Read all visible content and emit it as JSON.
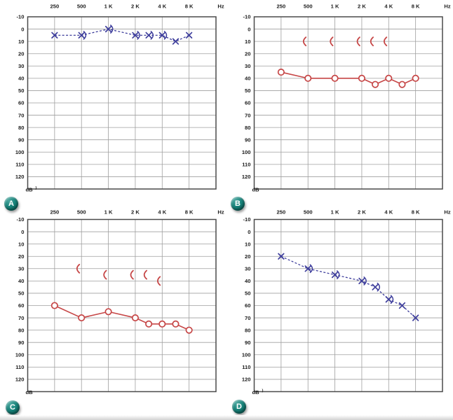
{
  "figure": {
    "description": "Four audiograms arranged in a 2x2 grid, labeled A, B, C, D",
    "background_color": "#ffffff"
  },
  "axis": {
    "x_tick_labels": [
      "250",
      "500",
      "1 K",
      "2 K",
      "4 K",
      "8 K"
    ],
    "x_unit_label": "Hz",
    "y_tick_labels": [
      "-10",
      "0",
      "10",
      "20",
      "30",
      "40",
      "50",
      "60",
      "70",
      "80",
      "90",
      "100",
      "110",
      "120"
    ],
    "y_axis": {
      "min": -10,
      "max": 120,
      "step": 10,
      "inverted": true
    },
    "grid": "on"
  },
  "colors": {
    "air_left_blue": "#3e3e9c",
    "air_right_red": "#c64646",
    "grid_line": "#9f9f9f",
    "grid_border": "#4a4a4a",
    "badge_teal": "#17837a"
  },
  "chart_data": [
    {
      "panel_label": "A",
      "type": "line",
      "series_name": "air conduction, X markers",
      "marker": "x",
      "line_style": "dashed",
      "color": "#3e3e9c",
      "x_hz": [
        250,
        500,
        1000,
        2000,
        3000,
        4000,
        6000,
        8000
      ],
      "values_db": [
        5,
        5,
        0,
        5,
        5,
        5,
        10,
        5
      ],
      "arrow_marks": {
        "symbol": ")",
        "at_hz": [
          500,
          1000,
          2000,
          3000,
          4000
        ]
      },
      "bone_marks": null,
      "y_unit_label": "dB",
      "y_unit_mark": ")"
    },
    {
      "panel_label": "B",
      "type": "line",
      "series_name": "air conduction, O markers",
      "marker": "o",
      "line_style": "solid",
      "color": "#c64646",
      "x_hz": [
        250,
        500,
        1000,
        2000,
        3000,
        4000,
        6000,
        8000
      ],
      "values_db": [
        35,
        40,
        40,
        40,
        45,
        40,
        45,
        40
      ],
      "arrow_marks": null,
      "bone_marks": {
        "symbol": "(",
        "at_hz": [
          500,
          1000,
          2000,
          3000,
          4000
        ],
        "values_db": [
          10,
          10,
          10,
          10,
          10
        ]
      },
      "y_unit_label": "dB",
      "y_unit_mark": null
    },
    {
      "panel_label": "C",
      "type": "line",
      "series_name": "air conduction, O markers",
      "marker": "o",
      "line_style": "solid",
      "color": "#c64646",
      "x_hz": [
        250,
        500,
        1000,
        2000,
        3000,
        4000,
        6000,
        8000
      ],
      "values_db": [
        60,
        70,
        65,
        70,
        75,
        75,
        75,
        80
      ],
      "arrow_marks": null,
      "bone_marks": {
        "symbol": "(",
        "at_hz": [
          500,
          1000,
          2000,
          3000,
          4000
        ],
        "values_db": [
          30,
          35,
          35,
          35,
          40
        ]
      },
      "y_unit_label": "dB",
      "y_unit_mark": null
    },
    {
      "panel_label": "D",
      "type": "line",
      "series_name": "air conduction, X markers",
      "marker": "x",
      "line_style": "dashed",
      "color": "#3e3e9c",
      "x_hz": [
        250,
        500,
        1000,
        2000,
        3000,
        4000,
        6000,
        8000
      ],
      "values_db": [
        20,
        30,
        35,
        40,
        45,
        55,
        60,
        70
      ],
      "arrow_marks": {
        "symbol": ")",
        "at_hz": [
          500,
          1000,
          2000,
          3000,
          4000
        ]
      },
      "bone_marks": null,
      "y_unit_label": "dB",
      "y_unit_mark": ")"
    }
  ]
}
